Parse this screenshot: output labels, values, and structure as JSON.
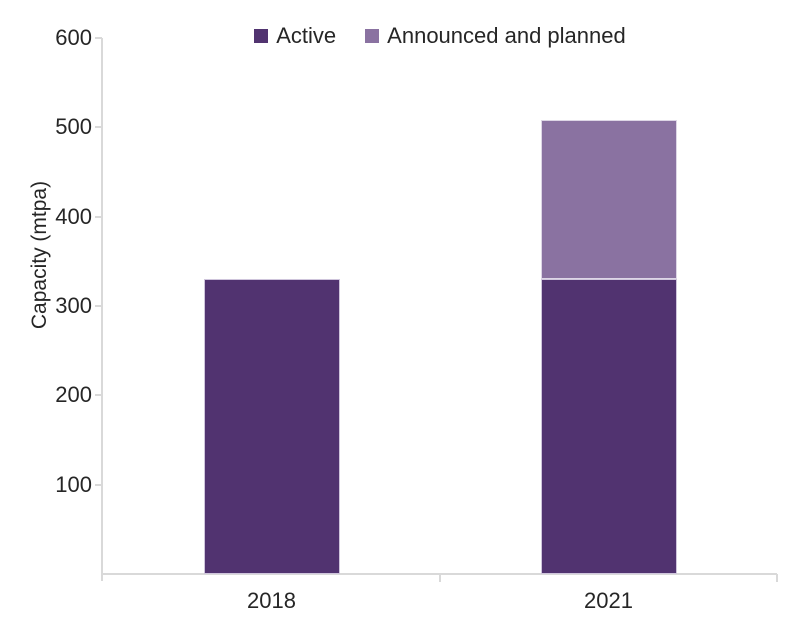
{
  "chart_data": {
    "type": "bar",
    "stacked": true,
    "title": "",
    "categories": [
      "2018",
      "2021"
    ],
    "series": [
      {
        "name": "Active",
        "color": "#513370",
        "border_color": "#cfc5dc",
        "values": [
          330,
          330
        ]
      },
      {
        "name": "Announced and planned",
        "color": "#8a72a1",
        "border_color": "#ddd6e6",
        "values": [
          0,
          178
        ]
      }
    ],
    "xlabel": "",
    "ylabel": "Capacity (mtpa)",
    "ylim": [
      0,
      600
    ],
    "yticks": [
      100,
      200,
      300,
      400,
      500,
      600
    ],
    "legend_position": "top",
    "grid": false,
    "axis_color": "#d9d9d9",
    "text_color": "#262626",
    "background_color": "#ffffff"
  }
}
